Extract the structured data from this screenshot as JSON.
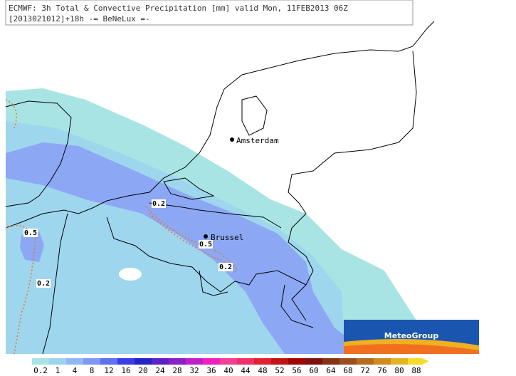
{
  "header": {
    "title": "ECMWF: 3h Total & Convective Precipitation [mm] valid Mon, 11FEB2013 06Z",
    "subtitle": "[2013021012]+18h -= BeNeLux =-"
  },
  "cities": [
    "Amsterdam",
    "Brussel"
  ],
  "contour_labels": [
    "0.2",
    "0.5",
    "0.5",
    "0.2",
    "0.2"
  ],
  "logo": "MeteoGroup",
  "legend": {
    "labels": [
      "0.2",
      "1",
      "4",
      "8",
      "12",
      "16",
      "20",
      "24",
      "28",
      "32",
      "36",
      "40",
      "44",
      "48",
      "52",
      "56",
      "60",
      "64",
      "68",
      "72",
      "76",
      "80",
      "88"
    ],
    "colors": [
      "#a8e4e4",
      "#9cd4ee",
      "#90b8f4",
      "#8098f4",
      "#6070f0",
      "#3c3ce8",
      "#2424c8",
      "#5a22c4",
      "#8a20c8",
      "#c020c8",
      "#f020c0",
      "#f04094",
      "#f03068",
      "#e02034",
      "#c01414",
      "#a00404",
      "#801010",
      "#843414",
      "#985020",
      "#b46c20",
      "#d08c20",
      "#e4b424",
      "#f4dc28"
    ]
  }
}
